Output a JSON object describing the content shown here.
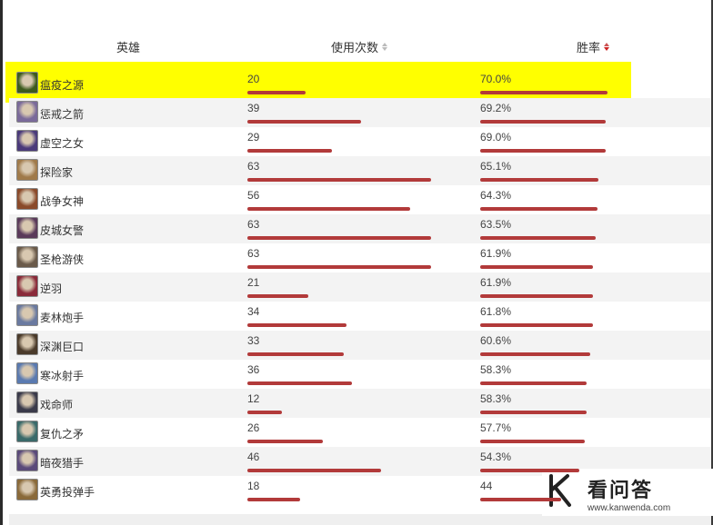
{
  "header": {
    "hero": "英雄",
    "usage": "使用次数",
    "winrate": "胜率"
  },
  "colors": {
    "bar": "#b23a3a",
    "highlight": "#ffff00"
  },
  "rows": [
    {
      "name": "瘟疫之源",
      "usage": "20",
      "winrate": "70.0%",
      "usage_num": 20,
      "win_num": 70.0,
      "highlighted": true,
      "avatar_color": "#3d5a1e"
    },
    {
      "name": "惩戒之箭",
      "usage": "39",
      "winrate": "69.2%",
      "usage_num": 39,
      "win_num": 69.2,
      "avatar_color": "#7a6a9a"
    },
    {
      "name": "虚空之女",
      "usage": "29",
      "winrate": "69.0%",
      "usage_num": 29,
      "win_num": 69.0,
      "avatar_color": "#4a3a7a"
    },
    {
      "name": "探险家",
      "usage": "63",
      "winrate": "65.1%",
      "usage_num": 63,
      "win_num": 65.1,
      "avatar_color": "#a07a4a"
    },
    {
      "name": "战争女神",
      "usage": "56",
      "winrate": "64.3%",
      "usage_num": 56,
      "win_num": 64.3,
      "avatar_color": "#8a4a2a"
    },
    {
      "name": "皮城女警",
      "usage": "63",
      "winrate": "63.5%",
      "usage_num": 63,
      "win_num": 63.5,
      "avatar_color": "#5a3a5a"
    },
    {
      "name": "圣枪游侠",
      "usage": "63",
      "winrate": "61.9%",
      "usage_num": 63,
      "win_num": 61.9,
      "avatar_color": "#6a5a4a"
    },
    {
      "name": "逆羽",
      "usage": "21",
      "winrate": "61.9%",
      "usage_num": 21,
      "win_num": 61.9,
      "avatar_color": "#8a2a3a"
    },
    {
      "name": "麦林炮手",
      "usage": "34",
      "winrate": "61.8%",
      "usage_num": 34,
      "win_num": 61.8,
      "avatar_color": "#6a7aa0"
    },
    {
      "name": "深渊巨口",
      "usage": "33",
      "winrate": "60.6%",
      "usage_num": 33,
      "win_num": 60.6,
      "avatar_color": "#4a3a2a"
    },
    {
      "name": "寒冰射手",
      "usage": "36",
      "winrate": "58.3%",
      "usage_num": 36,
      "win_num": 58.3,
      "avatar_color": "#5a7ab0"
    },
    {
      "name": "戏命师",
      "usage": "12",
      "winrate": "58.3%",
      "usage_num": 12,
      "win_num": 58.3,
      "avatar_color": "#3a3a4a"
    },
    {
      "name": "复仇之矛",
      "usage": "26",
      "winrate": "57.7%",
      "usage_num": 26,
      "win_num": 57.7,
      "avatar_color": "#3a6a6a"
    },
    {
      "name": "暗夜猎手",
      "usage": "46",
      "winrate": "54.3%",
      "usage_num": 46,
      "win_num": 54.3,
      "avatar_color": "#5a4a7a"
    },
    {
      "name": "英勇投弹手",
      "usage": "18",
      "winrate": "44",
      "usage_num": 18,
      "win_num": 44.4,
      "avatar_color": "#8a6a3a"
    }
  ],
  "watermark": {
    "title": "看问答",
    "url": "www.kanwenda.com"
  }
}
